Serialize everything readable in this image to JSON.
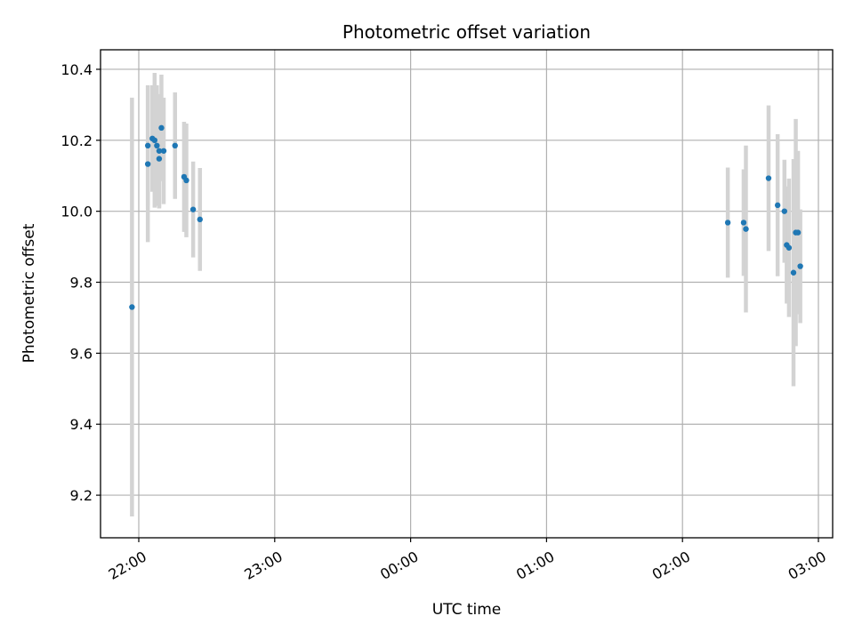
{
  "chart_data": {
    "type": "scatter",
    "title": "Photometric offset variation",
    "xlabel": "UTC time",
    "ylabel": "Photometric offset",
    "x_ticks": [
      "22:00",
      "23:00",
      "00:00",
      "01:00",
      "02:00",
      "03:00"
    ],
    "y_ticks": [
      "9.2",
      "9.4",
      "9.6",
      "9.8",
      "10.0",
      "10.2",
      "10.4"
    ],
    "ylim": [
      9.08,
      10.455
    ],
    "grid": true,
    "series": [
      {
        "marker_color": "#1f77b4",
        "errorbar_color": "#d3d3d3",
        "points": [
          {
            "t": "21:57",
            "y": 9.73,
            "err": 0.59
          },
          {
            "t": "22:04",
            "y": 10.185,
            "err": 0.17
          },
          {
            "t": "22:04",
            "y": 10.133,
            "err": 0.22
          },
          {
            "t": "22:06",
            "y": 10.205,
            "err": 0.15
          },
          {
            "t": "22:07",
            "y": 10.2,
            "err": 0.19
          },
          {
            "t": "22:08",
            "y": 10.185,
            "err": 0.17
          },
          {
            "t": "22:09",
            "y": 10.148,
            "err": 0.14
          },
          {
            "t": "22:09",
            "y": 10.17,
            "err": 0.16
          },
          {
            "t": "22:10",
            "y": 10.235,
            "err": 0.15
          },
          {
            "t": "22:11",
            "y": 10.17,
            "err": 0.15
          },
          {
            "t": "22:16",
            "y": 10.185,
            "err": 0.15
          },
          {
            "t": "22:20",
            "y": 10.097,
            "err": 0.155
          },
          {
            "t": "22:21",
            "y": 10.087,
            "err": 0.16
          },
          {
            "t": "22:24",
            "y": 10.005,
            "err": 0.135
          },
          {
            "t": "22:27",
            "y": 9.977,
            "err": 0.145
          },
          {
            "t": "02:20",
            "y": 9.968,
            "err": 0.155
          },
          {
            "t": "02:27",
            "y": 9.968,
            "err": 0.15
          },
          {
            "t": "02:28",
            "y": 9.95,
            "err": 0.235
          },
          {
            "t": "02:38",
            "y": 10.093,
            "err": 0.205
          },
          {
            "t": "02:42",
            "y": 10.017,
            "err": 0.2
          },
          {
            "t": "02:45",
            "y": 10.0,
            "err": 0.145
          },
          {
            "t": "02:46",
            "y": 9.905,
            "err": 0.165
          },
          {
            "t": "02:47",
            "y": 9.897,
            "err": 0.195
          },
          {
            "t": "02:49",
            "y": 9.827,
            "err": 0.32
          },
          {
            "t": "02:50",
            "y": 9.94,
            "err": 0.32
          },
          {
            "t": "02:51",
            "y": 9.94,
            "err": 0.23
          },
          {
            "t": "02:52",
            "y": 9.845,
            "err": 0.16
          }
        ]
      }
    ]
  }
}
